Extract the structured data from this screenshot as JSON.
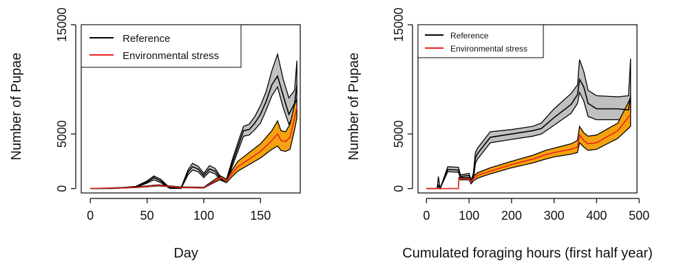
{
  "chart_data": [
    {
      "type": "line",
      "xlabel": "Day",
      "ylabel": "Number of Pupae",
      "xlim": [
        -8,
        185
      ],
      "ylim": [
        -400,
        15000
      ],
      "xticks": [
        0,
        50,
        100,
        150
      ],
      "yticks": [
        0,
        5000,
        15000
      ],
      "legend": {
        "placement": "top-left",
        "entries": [
          "Reference",
          "Environmental stress"
        ]
      },
      "series": [
        {
          "name": "Reference",
          "color": "#000000",
          "band_color": "#c0c0c0",
          "x": [
            0,
            20,
            40,
            50,
            56,
            62,
            70,
            80,
            86,
            90,
            95,
            100,
            105,
            110,
            115,
            120,
            125,
            130,
            135,
            140,
            145,
            150,
            155,
            160,
            165,
            170,
            175,
            180,
            182
          ],
          "mean": [
            0,
            20,
            150,
            600,
            1000,
            700,
            50,
            50,
            1500,
            2000,
            1800,
            1200,
            1800,
            1600,
            900,
            700,
            2300,
            3800,
            5300,
            5400,
            6000,
            6800,
            8000,
            9500,
            10300,
            8500,
            6800,
            7800,
            9500
          ],
          "lower": [
            0,
            10,
            100,
            500,
            800,
            550,
            20,
            20,
            1250,
            1700,
            1550,
            1000,
            1550,
            1350,
            750,
            550,
            2000,
            3400,
            4800,
            4900,
            5400,
            6000,
            7200,
            8500,
            9300,
            7400,
            5900,
            6900,
            8400
          ],
          "upper": [
            0,
            40,
            200,
            700,
            1150,
            850,
            80,
            80,
            1700,
            2300,
            2050,
            1400,
            2100,
            1850,
            1050,
            850,
            2600,
            4200,
            5700,
            5900,
            6600,
            7600,
            8900,
            10800,
            12300,
            10000,
            8300,
            9000,
            11700
          ]
        },
        {
          "name": "Environmental stress",
          "color": "#e8231f",
          "band_color": "#f5a20f",
          "x": [
            0,
            40,
            60,
            80,
            100,
            110,
            115,
            120,
            125,
            130,
            140,
            150,
            155,
            160,
            165,
            168,
            172,
            176,
            180,
            182
          ],
          "mean": [
            0,
            100,
            300,
            100,
            80,
            700,
            1000,
            700,
            1400,
            2000,
            2700,
            3400,
            3900,
            4400,
            5000,
            4400,
            4300,
            4700,
            6500,
            7500
          ],
          "lower": [
            0,
            80,
            250,
            80,
            50,
            600,
            850,
            550,
            1100,
            1600,
            2200,
            2800,
            3200,
            3600,
            3900,
            3500,
            3400,
            3600,
            5400,
            6500
          ],
          "upper": [
            0,
            150,
            350,
            150,
            120,
            850,
            1150,
            850,
            1700,
            2500,
            3300,
            4100,
            4700,
            5300,
            6200,
            5300,
            5200,
            5900,
            7700,
            8200
          ]
        }
      ]
    },
    {
      "type": "line",
      "xlabel": "Cumulated foraging hours (first half year)",
      "ylabel": "Number of Pupae",
      "xlim": [
        -20,
        495
      ],
      "ylim": [
        -400,
        15000
      ],
      "xticks": [
        0,
        100,
        200,
        300,
        400,
        500
      ],
      "yticks": [
        0,
        5000,
        15000
      ],
      "legend": {
        "placement": "top-left",
        "entries": [
          "Reference",
          "Environmental stress"
        ]
      },
      "series": [
        {
          "name": "Reference",
          "color": "#000000",
          "band_color": "#c0c0c0",
          "x": [
            0,
            25,
            28,
            32,
            50,
            75,
            80,
            100,
            105,
            110,
            115,
            120,
            150,
            200,
            250,
            270,
            300,
            340,
            355,
            360,
            370,
            380,
            400,
            450,
            475,
            480
          ],
          "mean": [
            0,
            0,
            300,
            0,
            1750,
            1700,
            1100,
            1200,
            600,
            1000,
            2800,
            3200,
            4700,
            5000,
            5300,
            5500,
            6500,
            7700,
            8600,
            10000,
            9300,
            7800,
            7300,
            7300,
            7200,
            8500
          ],
          "lower": [
            0,
            0,
            0,
            0,
            1550,
            1500,
            950,
            1000,
            450,
            700,
            2300,
            2700,
            4200,
            4500,
            4800,
            5000,
            5800,
            6900,
            7800,
            8800,
            8000,
            6600,
            6300,
            6300,
            6300,
            7000
          ],
          "upper": [
            0,
            0,
            1100,
            0,
            2000,
            1950,
            1250,
            1400,
            750,
            1400,
            3300,
            3700,
            5200,
            5400,
            5700,
            6000,
            7300,
            8700,
            9500,
            11800,
            10700,
            9000,
            8500,
            8400,
            8500,
            11900
          ]
        },
        {
          "name": "Environmental stress",
          "color": "#e8231f",
          "band_color": "#f5a20f",
          "x": [
            0,
            75,
            76,
            100,
            105,
            110,
            120,
            150,
            200,
            250,
            280,
            300,
            340,
            355,
            360,
            370,
            380,
            400,
            450,
            480
          ],
          "mean": [
            0,
            0,
            900,
            900,
            600,
            900,
            1200,
            1600,
            2200,
            2700,
            3100,
            3300,
            3600,
            3800,
            4900,
            4400,
            4100,
            4200,
            5300,
            6800
          ],
          "lower": [
            0,
            0,
            800,
            800,
            450,
            700,
            950,
            1350,
            1900,
            2350,
            2700,
            2900,
            3150,
            3300,
            4200,
            3800,
            3500,
            3600,
            4600,
            5700
          ],
          "upper": [
            0,
            0,
            1000,
            1000,
            750,
            1100,
            1450,
            1900,
            2500,
            3050,
            3500,
            3700,
            4100,
            4400,
            5700,
            5100,
            4800,
            4900,
            6000,
            8300
          ]
        }
      ]
    }
  ]
}
